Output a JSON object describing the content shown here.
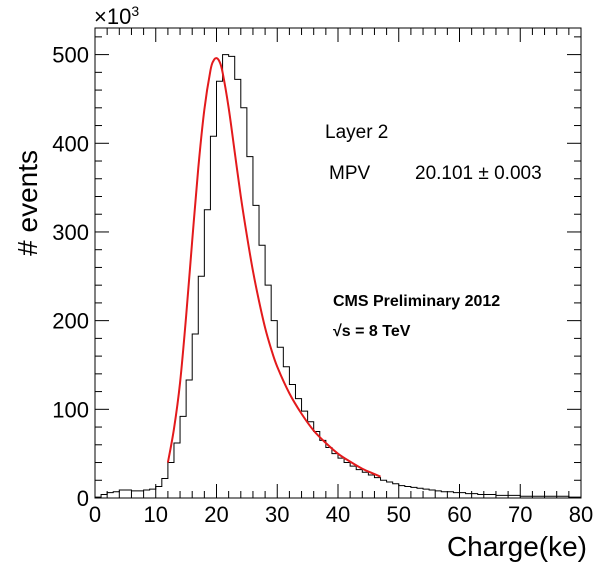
{
  "chart_data": {
    "type": "histogram",
    "xlabel": "Charge(ke)",
    "ylabel": "# events",
    "y_multiplier": "×10",
    "y_multiplier_exp": "3",
    "xlim": [
      0,
      80
    ],
    "ylim": [
      0,
      530
    ],
    "x_ticks": [
      0,
      10,
      20,
      30,
      40,
      50,
      60,
      70,
      80
    ],
    "y_ticks": [
      0,
      100,
      200,
      300,
      400,
      500
    ],
    "bin_width": 1,
    "histogram_counts": [
      1,
      4,
      6,
      7,
      9,
      9,
      8,
      8,
      9,
      10,
      13,
      22,
      40,
      62,
      92,
      133,
      185,
      250,
      325,
      408,
      470,
      500,
      498,
      472,
      440,
      385,
      330,
      285,
      240,
      200,
      170,
      148,
      128,
      112,
      98,
      86,
      75,
      65,
      57,
      50,
      45,
      40,
      36,
      32,
      29,
      26,
      23,
      20,
      18,
      16,
      14,
      13,
      12,
      11,
      10,
      9,
      8,
      7,
      7,
      6,
      6,
      5,
      5,
      4,
      4,
      4,
      3,
      3,
      3,
      3,
      2,
      2,
      2,
      2,
      2,
      2,
      2,
      2,
      1,
      1
    ],
    "fit": {
      "name": "fit",
      "color": "#e31a1c",
      "x": [
        12.0,
        13.0,
        14.0,
        15.0,
        16.0,
        17.0,
        18.0,
        19.0,
        19.5,
        20.0,
        20.5,
        21.0,
        22.0,
        23.0,
        24.0,
        25.0,
        26.0,
        27.0,
        28.0,
        29.0,
        30.0,
        32.0,
        34.0,
        36.0,
        38.0,
        40.0,
        42.0,
        44.0,
        46.0,
        47.0
      ],
      "y": [
        40,
        78,
        130,
        205,
        290,
        372,
        438,
        482,
        493,
        496,
        492,
        480,
        440,
        390,
        340,
        296,
        256,
        222,
        192,
        168,
        148,
        118,
        95,
        76,
        62,
        50,
        41,
        33,
        27,
        24
      ]
    }
  },
  "annotations": {
    "layer": "Layer 2",
    "mpv_label": "MPV",
    "mpv_value": "20.101 ± 0.003",
    "cms_label": "CMS Preliminary 2012",
    "energy_label": "√s = 8 TeV"
  }
}
